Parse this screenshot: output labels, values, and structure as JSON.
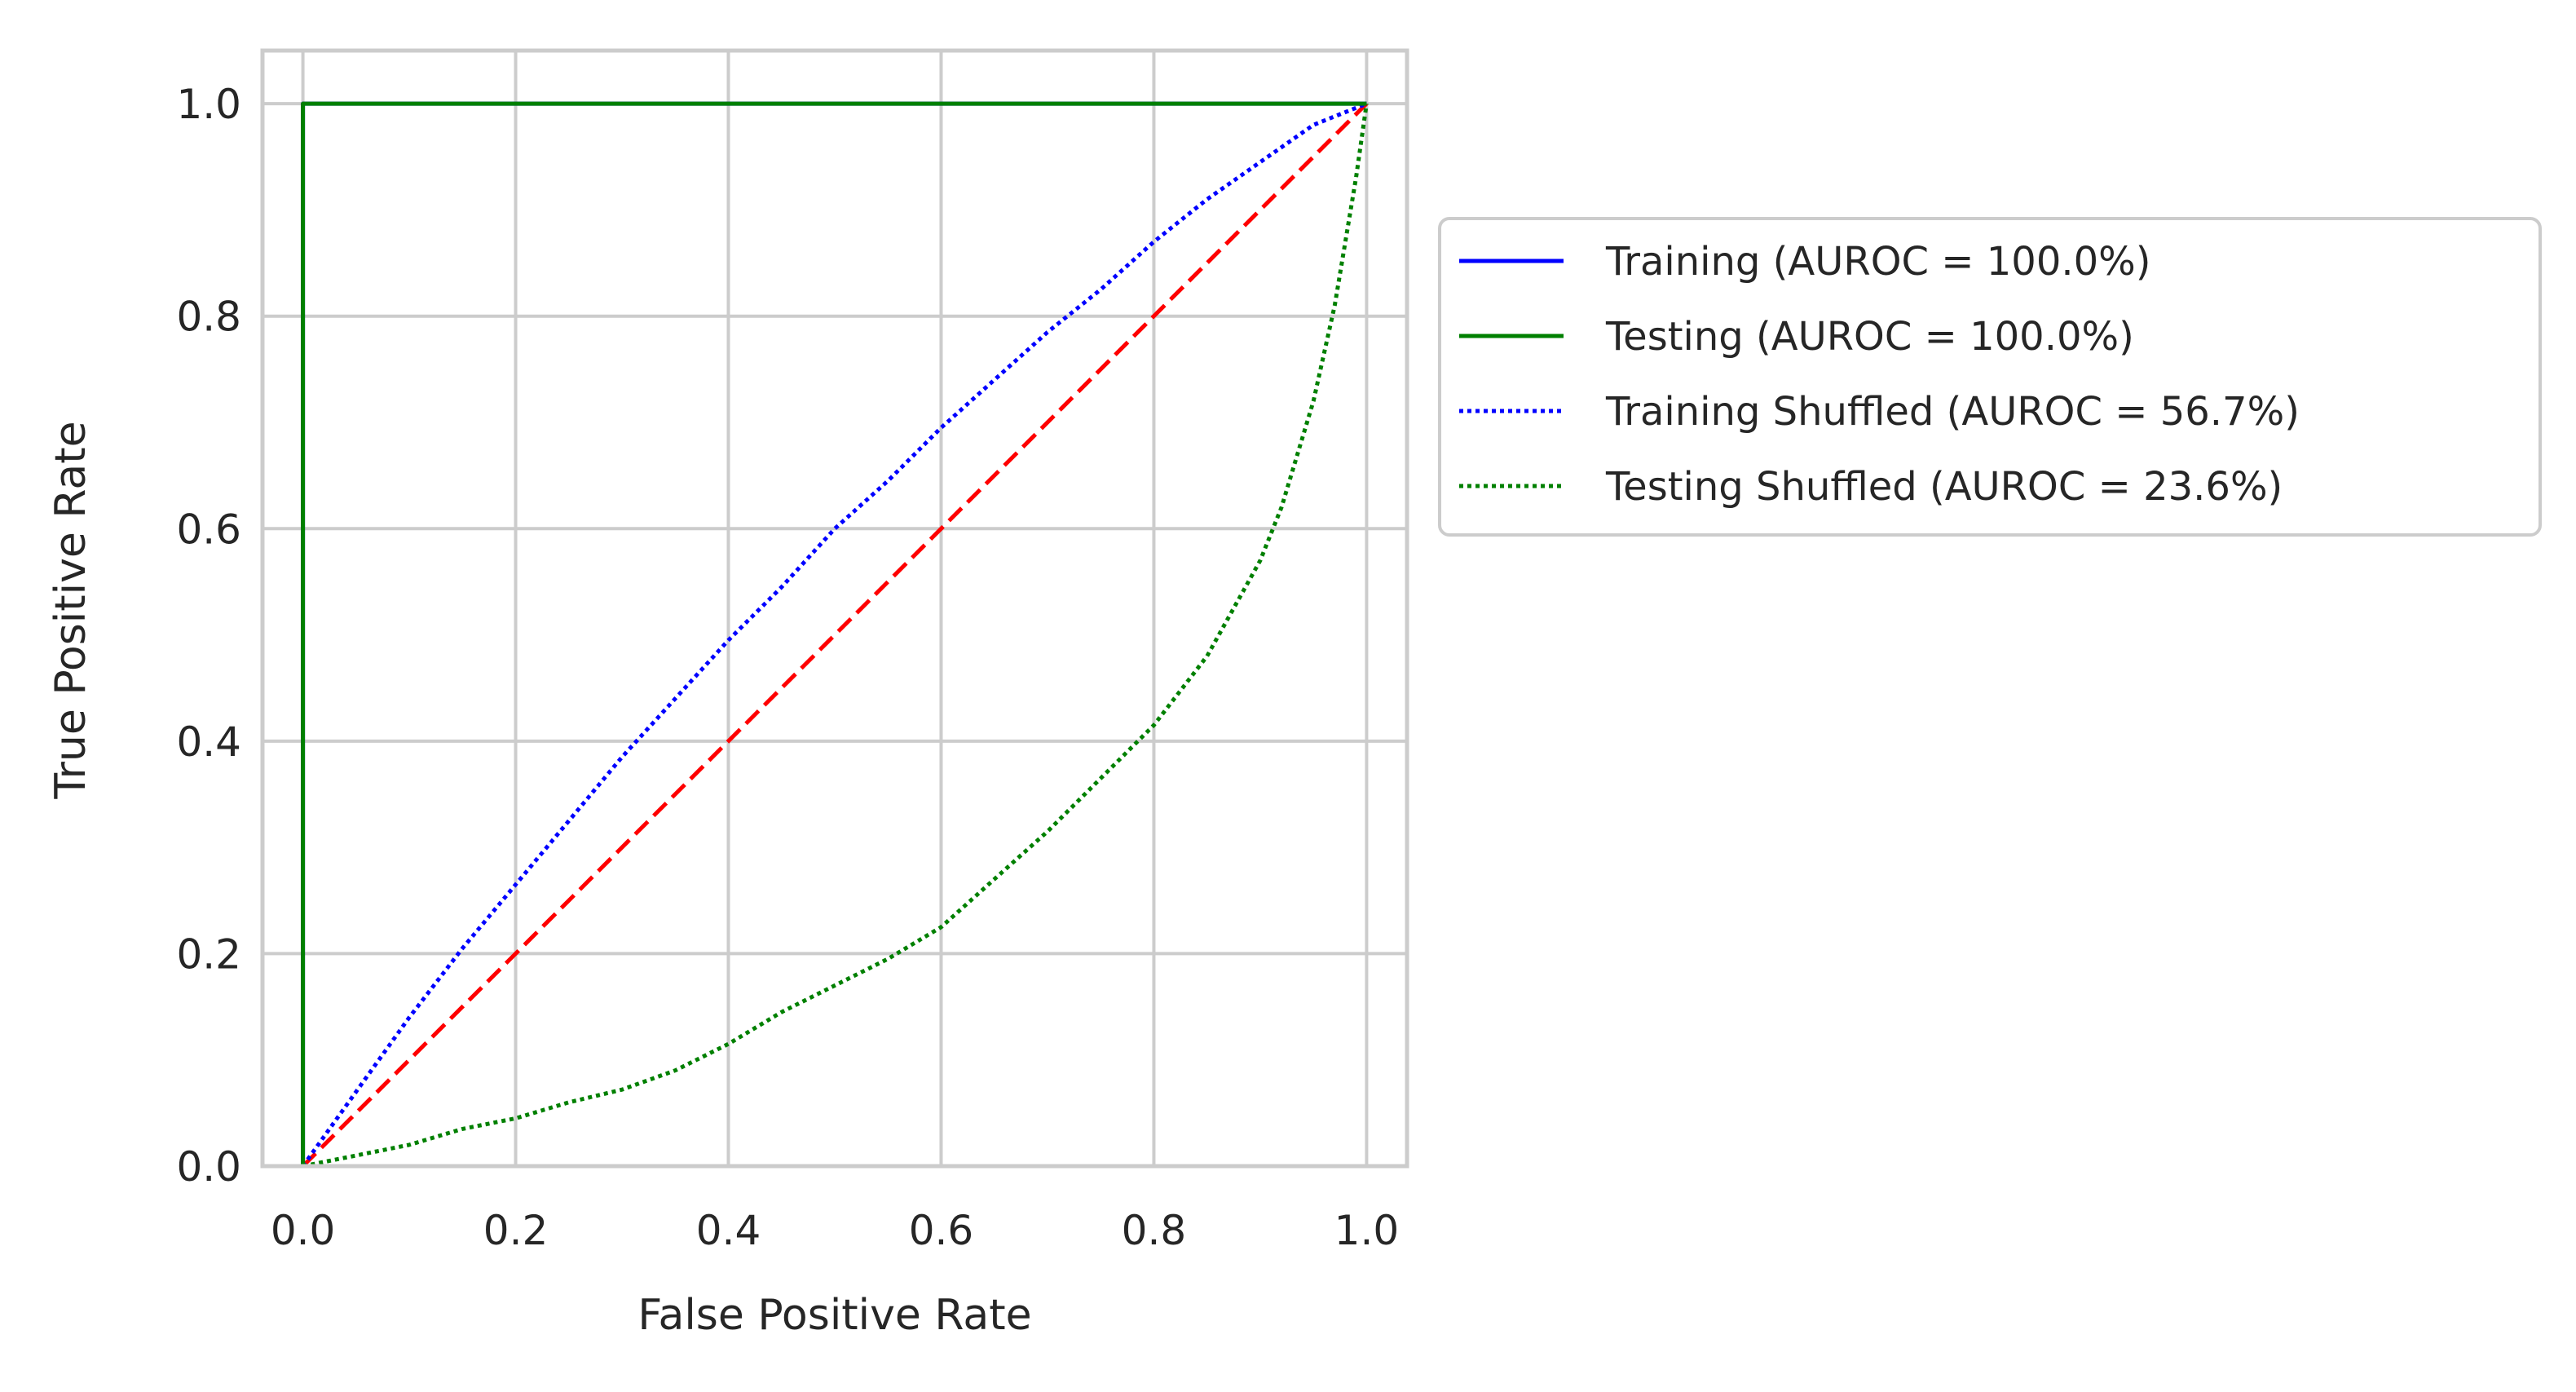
{
  "chart_data": {
    "type": "line",
    "title": "",
    "xlabel": "False Positive Rate",
    "ylabel": "True Positive Rate",
    "xlim": [
      -0.038,
      1.038
    ],
    "ylim": [
      -0.0,
      1.05
    ],
    "xticks": [
      "0.0",
      "0.2",
      "0.4",
      "0.6",
      "0.8",
      "1.0"
    ],
    "yticks": [
      "0.0",
      "0.2",
      "0.4",
      "0.6",
      "0.8",
      "1.0"
    ],
    "grid": true,
    "legend_position": "outside right, upper",
    "series": [
      {
        "name": "Training (AUROC = 100.0%)",
        "color": "#0000ff",
        "style": "solid",
        "x": [
          0.0,
          0.0,
          1.0
        ],
        "y": [
          0.0,
          1.0,
          1.0
        ]
      },
      {
        "name": "Testing (AUROC = 100.0%)",
        "color": "#008000",
        "style": "solid",
        "x": [
          0.0,
          0.0,
          1.0
        ],
        "y": [
          0.0,
          1.0,
          1.0
        ]
      },
      {
        "name": "Training Shuffled (AUROC = 56.7%)",
        "color": "#0000ff",
        "style": "dotted",
        "x": [
          0.0,
          0.05,
          0.1,
          0.15,
          0.2,
          0.25,
          0.3,
          0.35,
          0.4,
          0.45,
          0.5,
          0.55,
          0.6,
          0.65,
          0.7,
          0.75,
          0.8,
          0.85,
          0.9,
          0.95,
          1.0
        ],
        "y": [
          0.0,
          0.07,
          0.14,
          0.205,
          0.265,
          0.325,
          0.385,
          0.44,
          0.495,
          0.545,
          0.6,
          0.645,
          0.695,
          0.74,
          0.785,
          0.825,
          0.87,
          0.91,
          0.945,
          0.98,
          1.0
        ]
      },
      {
        "name": "Testing Shuffled (AUROC = 23.6%)",
        "color": "#008000",
        "style": "dotted",
        "x": [
          0.0,
          0.05,
          0.1,
          0.15,
          0.2,
          0.25,
          0.3,
          0.35,
          0.4,
          0.45,
          0.5,
          0.55,
          0.6,
          0.65,
          0.7,
          0.75,
          0.8,
          0.85,
          0.9,
          0.92,
          0.95,
          0.97,
          0.99,
          1.0
        ],
        "y": [
          0.0,
          0.01,
          0.02,
          0.035,
          0.045,
          0.06,
          0.072,
          0.09,
          0.115,
          0.145,
          0.17,
          0.195,
          0.225,
          0.27,
          0.315,
          0.365,
          0.415,
          0.48,
          0.57,
          0.62,
          0.72,
          0.81,
          0.93,
          1.0
        ]
      },
      {
        "name": "",
        "color": "#ff0000",
        "style": "dashed",
        "x": [
          0.0,
          1.0
        ],
        "y": [
          0.0,
          1.0
        ]
      }
    ]
  }
}
